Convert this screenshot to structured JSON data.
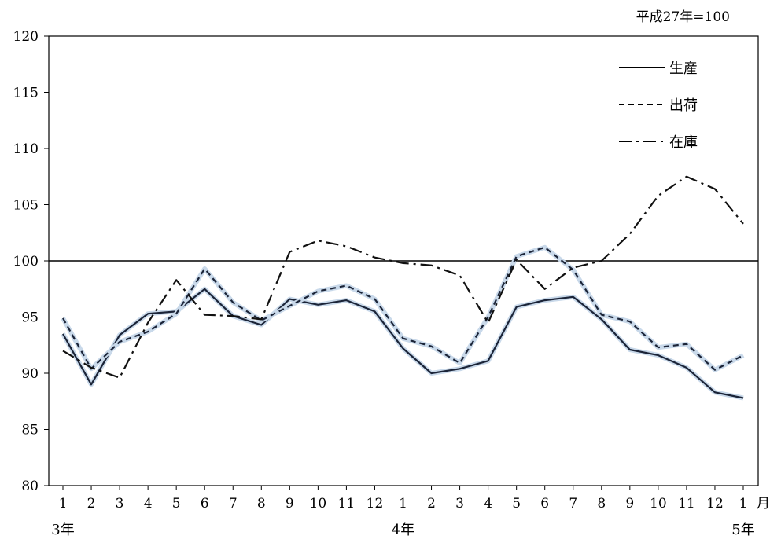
{
  "chart_data": {
    "type": "line",
    "unit_note": "平成27年=100",
    "month_labels": [
      "1",
      "2",
      "3",
      "4",
      "5",
      "6",
      "7",
      "8",
      "9",
      "10",
      "11",
      "12",
      "1",
      "2",
      "3",
      "4",
      "5",
      "6",
      "7",
      "8",
      "9",
      "10",
      "11",
      "12",
      "1"
    ],
    "month_suffix": "月",
    "year_labels": [
      {
        "text": "3年",
        "index": 0
      },
      {
        "text": "4年",
        "index": 12
      },
      {
        "text": "5年",
        "index": 24
      }
    ],
    "ylim": [
      80,
      120
    ],
    "yticks": [
      80,
      85,
      90,
      95,
      100,
      105,
      110,
      115,
      120
    ],
    "reference_line": 100,
    "grid": false,
    "legend_position": "top-right",
    "series": [
      {
        "name": "生産",
        "style": "solid",
        "color": "#1b2438",
        "halo": "#c9d9ea",
        "values": [
          93.5,
          89.0,
          93.4,
          95.3,
          95.5,
          97.5,
          95.1,
          94.3,
          96.6,
          96.1,
          96.5,
          95.5,
          92.2,
          90.0,
          90.4,
          91.1,
          95.9,
          96.5,
          96.8,
          94.8,
          92.1,
          91.6,
          90.5,
          88.3,
          87.8
        ]
      },
      {
        "name": "出荷",
        "style": "dashed",
        "color": "#1b2438",
        "halo": "#c9d9ea",
        "values": [
          94.9,
          90.4,
          92.8,
          93.7,
          95.3,
          99.3,
          96.3,
          94.7,
          96.0,
          97.3,
          97.8,
          96.6,
          93.1,
          92.4,
          90.9,
          95.0,
          100.4,
          101.2,
          99.2,
          95.2,
          94.6,
          92.3,
          92.6,
          90.3,
          91.6
        ]
      },
      {
        "name": "在庫",
        "style": "dashdot",
        "color": "#111111",
        "halo": null,
        "values": [
          92.0,
          90.5,
          89.6,
          94.5,
          98.3,
          95.2,
          95.1,
          94.8,
          100.8,
          101.8,
          101.3,
          100.3,
          99.8,
          99.6,
          98.7,
          94.5,
          100.1,
          97.5,
          99.4,
          100.0,
          102.4,
          105.8,
          107.5,
          106.4,
          103.3
        ]
      }
    ]
  }
}
